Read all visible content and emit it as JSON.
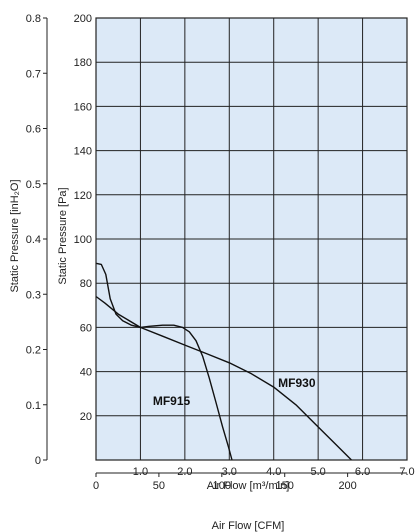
{
  "chart_data": {
    "type": "line",
    "plot_bg": "#dce9f7",
    "grid": true,
    "line_color": "#111111",
    "x": {
      "label": "Air Flow [m³/min]",
      "range": [
        0,
        7.0
      ],
      "tick_values": [
        1.0,
        2.0,
        3.0,
        4.0,
        5.0,
        6.0,
        7.0
      ],
      "tick_labels": [
        "1.0",
        "2.0",
        "3.0",
        "4.0",
        "5.0",
        "6.0",
        "7.0"
      ]
    },
    "x_secondary": {
      "label": "Air Flow [CFM]",
      "range": [
        0,
        247.2
      ],
      "tick_values": [
        0,
        50,
        100,
        150,
        200
      ],
      "tick_labels": [
        "0",
        "50",
        "100",
        "150",
        "200"
      ]
    },
    "y": {
      "label": "Static Pressure [Pa]",
      "range": [
        0,
        200
      ],
      "tick_values": [
        20,
        40,
        60,
        80,
        100,
        120,
        140,
        160,
        180,
        200
      ],
      "tick_labels": [
        "20",
        "40",
        "60",
        "80",
        "100",
        "120",
        "140",
        "160",
        "180",
        "200"
      ]
    },
    "y_secondary": {
      "label": "Static Pressure [inH₂O]",
      "range": [
        0,
        0.8
      ],
      "tick_values": [
        0,
        0.1,
        0.2,
        0.3,
        0.4,
        0.5,
        0.6,
        0.7,
        0.8
      ],
      "tick_labels": [
        "0",
        "0.1",
        "0.2",
        "0.3",
        "0.4",
        "0.5",
        "0.6",
        "0.7",
        "0.8"
      ]
    },
    "series": [
      {
        "name": "MF915",
        "label_pos": [
          1.28,
          25
        ],
        "points": [
          [
            0,
            89
          ],
          [
            0.12,
            88.5
          ],
          [
            0.22,
            84
          ],
          [
            0.32,
            73
          ],
          [
            0.45,
            66
          ],
          [
            0.6,
            63
          ],
          [
            0.8,
            61
          ],
          [
            1.0,
            60
          ],
          [
            1.2,
            60.5
          ],
          [
            1.5,
            61
          ],
          [
            1.75,
            61
          ],
          [
            1.95,
            60
          ],
          [
            2.1,
            58
          ],
          [
            2.25,
            54
          ],
          [
            2.4,
            47
          ],
          [
            2.55,
            37
          ],
          [
            2.7,
            26
          ],
          [
            2.85,
            15
          ],
          [
            2.98,
            6
          ],
          [
            3.06,
            0
          ]
        ]
      },
      {
        "name": "MF930",
        "label_pos": [
          4.1,
          33
        ],
        "points": [
          [
            0,
            74
          ],
          [
            0.2,
            71
          ],
          [
            0.5,
            66
          ],
          [
            1.0,
            60
          ],
          [
            1.5,
            56
          ],
          [
            2.0,
            52
          ],
          [
            2.5,
            48
          ],
          [
            3.0,
            44
          ],
          [
            3.5,
            39
          ],
          [
            4.0,
            33
          ],
          [
            4.5,
            25
          ],
          [
            5.0,
            15
          ],
          [
            5.4,
            7
          ],
          [
            5.7,
            1
          ],
          [
            5.75,
            0
          ]
        ]
      }
    ]
  }
}
